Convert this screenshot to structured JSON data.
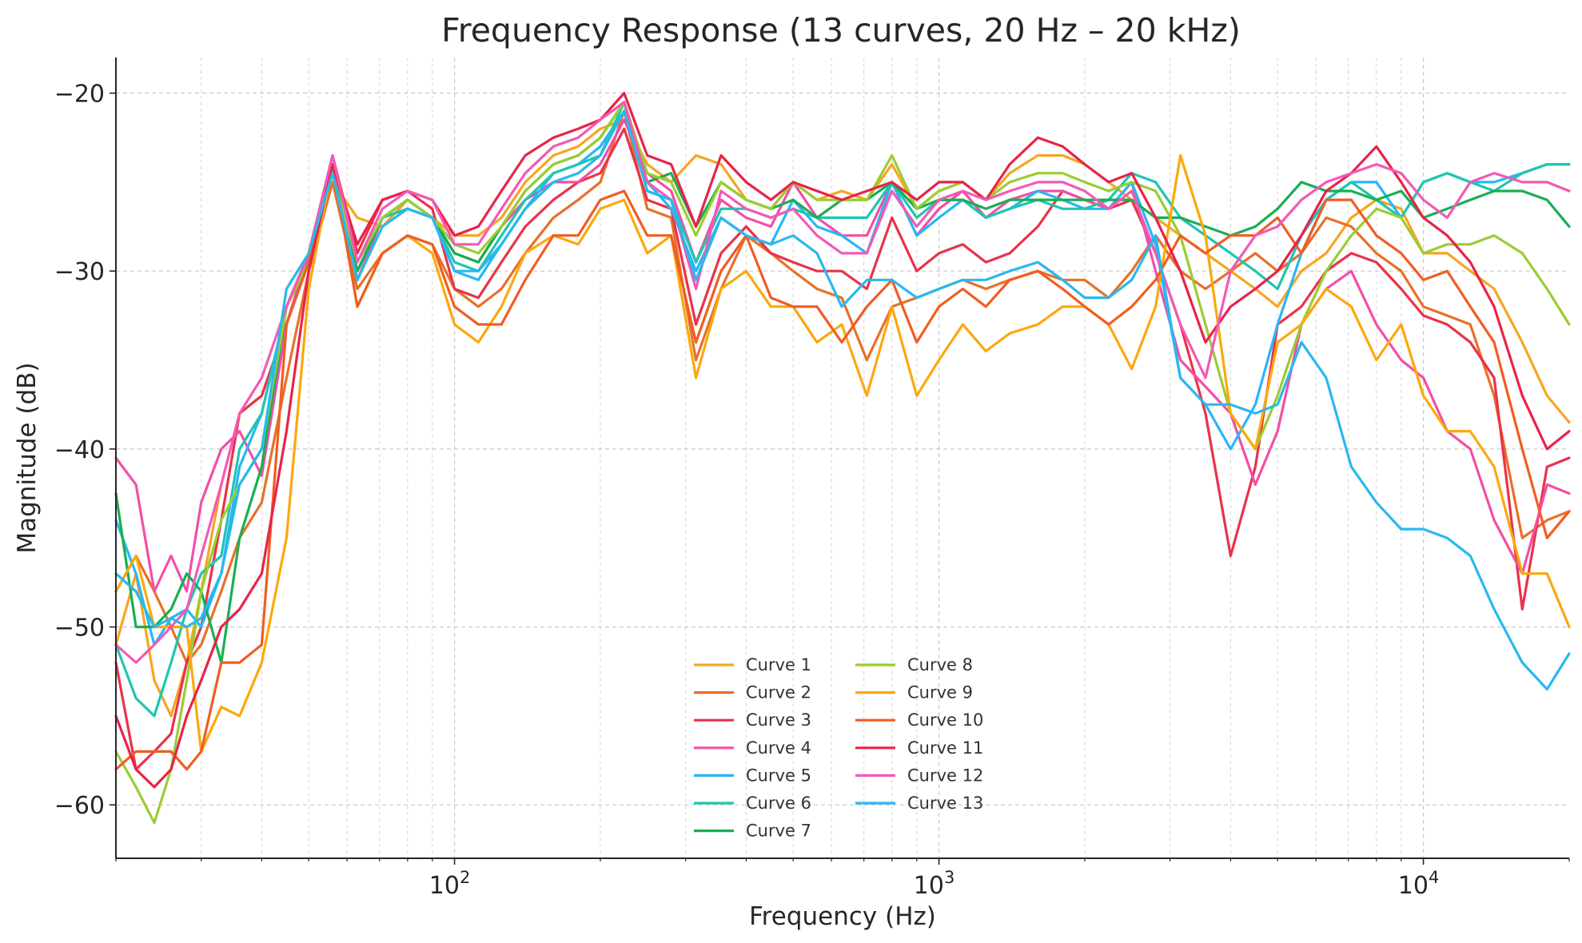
{
  "chart_data": {
    "type": "line",
    "title": "Frequency Response (13 curves, 20 Hz – 20 kHz)",
    "xlabel": "Frequency (Hz)",
    "ylabel": "Magnitude (dB)",
    "x_scale": "log",
    "xlim": [
      20,
      20000
    ],
    "ylim": [
      -63,
      -18
    ],
    "grid": true,
    "legend_position": "lower-center",
    "x_ticks": [
      {
        "value": 100,
        "base": "10",
        "exp": "2"
      },
      {
        "value": 1000,
        "base": "10",
        "exp": "3"
      },
      {
        "value": 10000,
        "base": "10",
        "exp": "4"
      }
    ],
    "y_ticks": [
      {
        "value": -20,
        "label": "−20"
      },
      {
        "value": -30,
        "label": "−30"
      },
      {
        "value": -40,
        "label": "−40"
      },
      {
        "value": -50,
        "label": "−50"
      },
      {
        "value": -60,
        "label": "−60"
      }
    ],
    "x": [
      20,
      22,
      24,
      26,
      28,
      30,
      33,
      36,
      40,
      45,
      50,
      56,
      63,
      71,
      80,
      90,
      100,
      112,
      125,
      140,
      160,
      180,
      200,
      224,
      250,
      280,
      315,
      355,
      400,
      450,
      500,
      560,
      630,
      710,
      800,
      900,
      1000,
      1120,
      1250,
      1400,
      1600,
      1800,
      2000,
      2240,
      2500,
      2800,
      3150,
      3550,
      4000,
      4500,
      5000,
      5600,
      6300,
      7100,
      8000,
      9000,
      10000,
      11200,
      12500,
      14000,
      16000,
      18000,
      20000
    ],
    "series": [
      {
        "name": "Curve 1",
        "color": "#f5a623",
        "values": [
          -51,
          -47,
          -53,
          -55,
          -52,
          -48,
          -42,
          -38,
          -37,
          -33,
          -29,
          -25,
          -27,
          -27.5,
          -26,
          -27,
          -28,
          -28,
          -27,
          -25,
          -23.5,
          -23,
          -22,
          -21.5,
          -24,
          -25,
          -23.5,
          -24,
          -26,
          -26.5,
          -25,
          -26,
          -25.5,
          -26,
          -24,
          -26.5,
          -25.5,
          -25,
          -26,
          -24.5,
          -23.5,
          -23.5,
          -24,
          -25,
          -26,
          -27,
          -28,
          -29,
          -30,
          -31,
          -32,
          -30,
          -29,
          -27,
          -26,
          -26.5,
          -29,
          -29,
          -30,
          -31,
          -34,
          -37,
          -38.5
        ]
      },
      {
        "name": "Curve 2",
        "color": "#e8702a",
        "values": [
          -48,
          -46,
          -48,
          -50,
          -52,
          -51,
          -48,
          -45,
          -43,
          -36,
          -30,
          -25,
          -31,
          -29,
          -28,
          -28.5,
          -31,
          -32,
          -31,
          -29,
          -27,
          -26,
          -25,
          -21,
          -26.5,
          -27,
          -35,
          -31,
          -28,
          -29,
          -30,
          -31,
          -31.5,
          -35,
          -32,
          -31.5,
          -31,
          -30.5,
          -31,
          -30.5,
          -30,
          -30.5,
          -30.5,
          -31.5,
          -30,
          -28,
          -30,
          -31,
          -30,
          -29,
          -30,
          -29,
          -27,
          -27.5,
          -29,
          -30,
          -32,
          -32.5,
          -33,
          -37,
          -45,
          -44,
          -43.5
        ]
      },
      {
        "name": "Curve 3",
        "color": "#e8334a",
        "values": [
          -52,
          -58,
          -57,
          -56,
          -52,
          -50,
          -44,
          -38,
          -37,
          -33,
          -29,
          -23.5,
          -29,
          -26,
          -25.5,
          -26.5,
          -31,
          -31.5,
          -29.5,
          -27.5,
          -26,
          -25,
          -24.5,
          -22,
          -26,
          -26.5,
          -33,
          -29,
          -27.5,
          -29,
          -29.5,
          -30,
          -30,
          -31,
          -27,
          -30,
          -29,
          -28.5,
          -29.5,
          -29,
          -27.5,
          -25.5,
          -26,
          -26.5,
          -26,
          -29,
          -33,
          -38,
          -46,
          -41,
          -33,
          -32,
          -30,
          -29,
          -29.5,
          -31,
          -32.5,
          -33,
          -34,
          -36,
          -49,
          -41,
          -40.5
        ]
      },
      {
        "name": "Curve 4",
        "color": "#f14fa8",
        "values": [
          -40.5,
          -42,
          -48,
          -46,
          -48,
          -43,
          -40,
          -39,
          -41.5,
          -33,
          -29,
          -24,
          -30.5,
          -27,
          -26,
          -27,
          -29,
          -29.5,
          -27.5,
          -26,
          -25,
          -25,
          -24,
          -21.5,
          -24.5,
          -25.5,
          -29.5,
          -26,
          -27,
          -27.5,
          -25,
          -27,
          -28,
          -28,
          -25,
          -28,
          -26.5,
          -25.5,
          -27,
          -26,
          -25.5,
          -25.5,
          -26,
          -26.5,
          -25,
          -30,
          -35,
          -36.5,
          -38,
          -42,
          -39,
          -33,
          -31,
          -30,
          -33,
          -35,
          -36,
          -39,
          -40,
          -44,
          -47,
          -42,
          -42.5
        ]
      },
      {
        "name": "Curve 5",
        "color": "#29b6f6",
        "values": [
          -44,
          -47,
          -51,
          -49.5,
          -49,
          -50,
          -47,
          -41,
          -38,
          -32,
          -29,
          -24.5,
          -30,
          -27,
          -26.5,
          -27,
          -30,
          -30.5,
          -28.5,
          -26.5,
          -24.5,
          -24,
          -23,
          -21,
          -25,
          -26.5,
          -30,
          -27,
          -28,
          -28.5,
          -26,
          -27.5,
          -28,
          -29,
          -25,
          -28,
          -27,
          -26,
          -27,
          -26.5,
          -25.5,
          -26,
          -26.5,
          -26.5,
          -25,
          -28.5,
          -36,
          -37.5,
          -40,
          -37.5,
          -33,
          -29,
          -26,
          -25,
          -25,
          -27,
          -25,
          -24.5,
          -25,
          -25,
          -24.5,
          -24,
          -24
        ]
      },
      {
        "name": "Curve 6",
        "color": "#1fc6b0",
        "values": [
          -51,
          -54,
          -55,
          -52,
          -49,
          -47,
          -46,
          -40,
          -38,
          -32,
          -29,
          -24,
          -30,
          -27,
          -26.5,
          -27,
          -29.5,
          -30,
          -28,
          -26,
          -24.5,
          -24,
          -23.5,
          -20.5,
          -25.5,
          -26,
          -29.5,
          -26.5,
          -26.5,
          -27,
          -26.5,
          -27,
          -27,
          -27,
          -25,
          -27,
          -26,
          -26,
          -27,
          -26.5,
          -26,
          -26.5,
          -26.5,
          -26,
          -24.5,
          -25,
          -27,
          -28,
          -29,
          -30,
          -31,
          -28,
          -26,
          -25,
          -26,
          -27,
          -25,
          -24.5,
          -25,
          -25.5,
          -24.5,
          -24,
          -24
        ]
      },
      {
        "name": "Curve 7",
        "color": "#1aae52",
        "values": [
          -42.5,
          -50,
          -50,
          -49,
          -47,
          -48,
          -52,
          -45,
          -41,
          -32,
          -29.5,
          -24,
          -30,
          -27,
          -26,
          -27,
          -29,
          -29.5,
          -27.5,
          -25.5,
          -24,
          -23.5,
          -22.5,
          -20.5,
          -25,
          -24.5,
          -27.5,
          -25,
          -26,
          -26.5,
          -26,
          -27,
          -26,
          -26,
          -25,
          -26.5,
          -26,
          -26,
          -26.5,
          -26,
          -26,
          -26,
          -26,
          -26,
          -26,
          -27,
          -27,
          -27.5,
          -28,
          -27.5,
          -26.5,
          -25,
          -25.5,
          -25.5,
          -26,
          -25.5,
          -27,
          -26.5,
          -26,
          -25.5,
          -25.5,
          -26,
          -27.5
        ]
      },
      {
        "name": "Curve 8",
        "color": "#9acd32",
        "values": [
          -57,
          -59,
          -61,
          -58,
          -53,
          -48,
          -44,
          -42,
          -40,
          -32,
          -29.5,
          -24.5,
          -29.5,
          -27,
          -26,
          -27,
          -28.5,
          -29,
          -27.5,
          -25.5,
          -24,
          -23.5,
          -22.5,
          -20.5,
          -24.5,
          -25,
          -28,
          -25,
          -26,
          -26.5,
          -25,
          -26,
          -26,
          -26,
          -23.5,
          -26.5,
          -25.5,
          -25,
          -26,
          -25,
          -24.5,
          -24.5,
          -25,
          -25.5,
          -25,
          -25.5,
          -28,
          -33,
          -38,
          -40,
          -37,
          -33,
          -30,
          -28,
          -26.5,
          -27,
          -29,
          -28.5,
          -28.5,
          -28,
          -29,
          -31,
          -33
        ]
      },
      {
        "name": "Curve 9",
        "color": "#fba80e",
        "values": [
          -48,
          -46,
          -50,
          -50,
          -50,
          -57,
          -54.5,
          -55,
          -52,
          -45,
          -31,
          -24,
          -32,
          -29,
          -28,
          -29,
          -33,
          -34,
          -32,
          -29,
          -28,
          -28.5,
          -26.5,
          -26,
          -29,
          -28,
          -36,
          -31,
          -30,
          -32,
          -32,
          -34,
          -33,
          -37,
          -32,
          -37,
          -35,
          -33,
          -34.5,
          -33.5,
          -33,
          -32,
          -32,
          -33,
          -35.5,
          -32,
          -23.5,
          -28,
          -38,
          -40,
          -34,
          -33,
          -31,
          -32,
          -35,
          -33,
          -37,
          -39,
          -39,
          -41,
          -47,
          -47,
          -50
        ]
      },
      {
        "name": "Curve 10",
        "color": "#f05d23",
        "values": [
          -58,
          -57,
          -57,
          -57,
          -58,
          -57,
          -52,
          -52,
          -51,
          -33,
          -29.5,
          -24,
          -32,
          -29,
          -28,
          -28.5,
          -32,
          -33,
          -33,
          -30.5,
          -28,
          -28,
          -26,
          -25.5,
          -28,
          -28,
          -34,
          -30,
          -28,
          -31.5,
          -32,
          -32,
          -34,
          -32,
          -30.5,
          -34,
          -32,
          -31,
          -32,
          -30.5,
          -30,
          -31,
          -32,
          -33,
          -32,
          -30.5,
          -28,
          -29,
          -28,
          -28,
          -27,
          -29,
          -26,
          -26,
          -28,
          -29,
          -30.5,
          -30,
          -32,
          -34,
          -40,
          -45,
          -43.5
        ]
      },
      {
        "name": "Curve 11",
        "color": "#e8234a",
        "values": [
          -55,
          -58,
          -59,
          -58,
          -55,
          -53,
          -50,
          -49,
          -47,
          -39,
          -30,
          -24,
          -28.5,
          -26,
          -25.5,
          -26,
          -28,
          -27.5,
          -25.5,
          -23.5,
          -22.5,
          -22,
          -21.5,
          -20,
          -23.5,
          -24,
          -27.5,
          -23.5,
          -25,
          -26,
          -25,
          -25.5,
          -26,
          -25.5,
          -25,
          -26,
          -25,
          -25,
          -26,
          -24,
          -22.5,
          -23,
          -24,
          -25,
          -24.5,
          -27,
          -30,
          -34,
          -32,
          -31,
          -30,
          -28,
          -25.5,
          -24.5,
          -23,
          -25,
          -27,
          -28,
          -29.5,
          -32,
          -37,
          -40,
          -39
        ]
      },
      {
        "name": "Curve 12",
        "color": "#f25ab5",
        "values": [
          -51,
          -52,
          -51,
          -50,
          -49,
          -46,
          -42,
          -38,
          -36,
          -32,
          -29,
          -23.5,
          -29.5,
          -26.5,
          -25.5,
          -26,
          -28.5,
          -28.5,
          -26.5,
          -24.5,
          -23,
          -22.5,
          -21.5,
          -20.5,
          -25,
          -26,
          -31,
          -25.5,
          -26.5,
          -27,
          -26.5,
          -28,
          -29,
          -29,
          -25.5,
          -27.5,
          -26,
          -25.5,
          -26,
          -25.5,
          -25,
          -25,
          -25.5,
          -26.5,
          -25.5,
          -29,
          -33,
          -36,
          -30,
          -28,
          -27.5,
          -26,
          -25,
          -24.5,
          -24,
          -24.5,
          -26,
          -27,
          -25,
          -24.5,
          -25,
          -25,
          -25.5
        ]
      },
      {
        "name": "Curve 13",
        "color": "#2ab8ee",
        "values": [
          -47,
          -48,
          -50,
          -49.5,
          -50,
          -49.5,
          -47,
          -42,
          -40,
          -31,
          -29,
          -24.5,
          -30.5,
          -27.5,
          -26.5,
          -27,
          -30,
          -30,
          -28.5,
          -26.5,
          -25,
          -24.5,
          -23.5,
          -21,
          -25.5,
          -26,
          -30.5,
          -27,
          -28,
          -28.5,
          -28,
          -29,
          -32,
          -30.5,
          -30.5,
          -31.5,
          -31,
          -30.5,
          -30.5,
          -30,
          -29.5,
          -30.5,
          -31.5,
          -31.5,
          -30.5,
          -28,
          -36,
          -37.5,
          -37.5,
          -38,
          -37.5,
          -34,
          -36,
          -41,
          -43,
          -44.5,
          -44.5,
          -45,
          -46,
          -49,
          -52,
          -53.5,
          -51.5
        ]
      }
    ]
  }
}
